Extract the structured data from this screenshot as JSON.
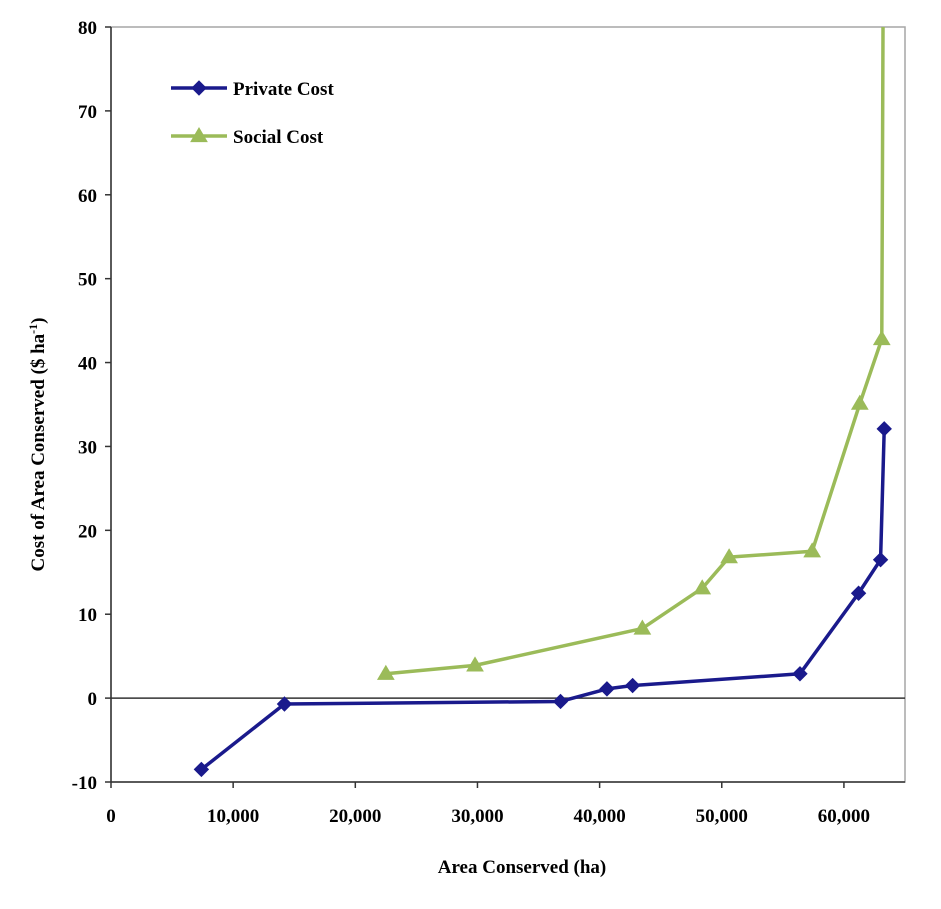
{
  "chart_data": {
    "type": "line",
    "title": "",
    "xlabel": "Area Conserved (ha)",
    "ylabel": "Cost of Area Conserved ($ ha",
    "ylabel_superscript": "-1",
    "ylabel_close": ")",
    "xlim": [
      0,
      65000
    ],
    "ylim": [
      -10,
      80
    ],
    "x_ticks": [
      0,
      10000,
      20000,
      30000,
      40000,
      50000,
      60000
    ],
    "x_tick_labels": [
      "0",
      "10,000",
      "20,000",
      "30,000",
      "40,000",
      "50,000",
      "60,000"
    ],
    "y_ticks": [
      -10,
      0,
      10,
      20,
      30,
      40,
      50,
      60,
      70,
      80
    ],
    "y_tick_labels": [
      "-10",
      "0",
      "10",
      "20",
      "30",
      "40",
      "50",
      "60",
      "70",
      "80"
    ],
    "grid": false,
    "zero_line": true,
    "legend_position": "top-left",
    "series": [
      {
        "name": "Private Cost",
        "color": "#1a1a8c",
        "marker": "diamond",
        "points": [
          {
            "x": 7400,
            "y": -8.5
          },
          {
            "x": 14200,
            "y": -0.7
          },
          {
            "x": 36800,
            "y": -0.4
          },
          {
            "x": 40600,
            "y": 1.1
          },
          {
            "x": 42700,
            "y": 1.5
          },
          {
            "x": 56400,
            "y": 2.9
          },
          {
            "x": 61200,
            "y": 12.5
          },
          {
            "x": 63000,
            "y": 16.5
          },
          {
            "x": 63300,
            "y": 32.1
          }
        ]
      },
      {
        "name": "Social Cost",
        "color": "#9bbb59",
        "marker": "triangle",
        "points": [
          {
            "x": 22500,
            "y": 2.9
          },
          {
            "x": 29800,
            "y": 3.9
          },
          {
            "x": 43500,
            "y": 8.3
          },
          {
            "x": 48400,
            "y": 13.1
          },
          {
            "x": 50600,
            "y": 16.8
          },
          {
            "x": 57400,
            "y": 17.5
          },
          {
            "x": 61300,
            "y": 35.1
          },
          {
            "x": 63100,
            "y": 42.8
          },
          {
            "x": 63200,
            "y": 80
          }
        ]
      }
    ]
  }
}
